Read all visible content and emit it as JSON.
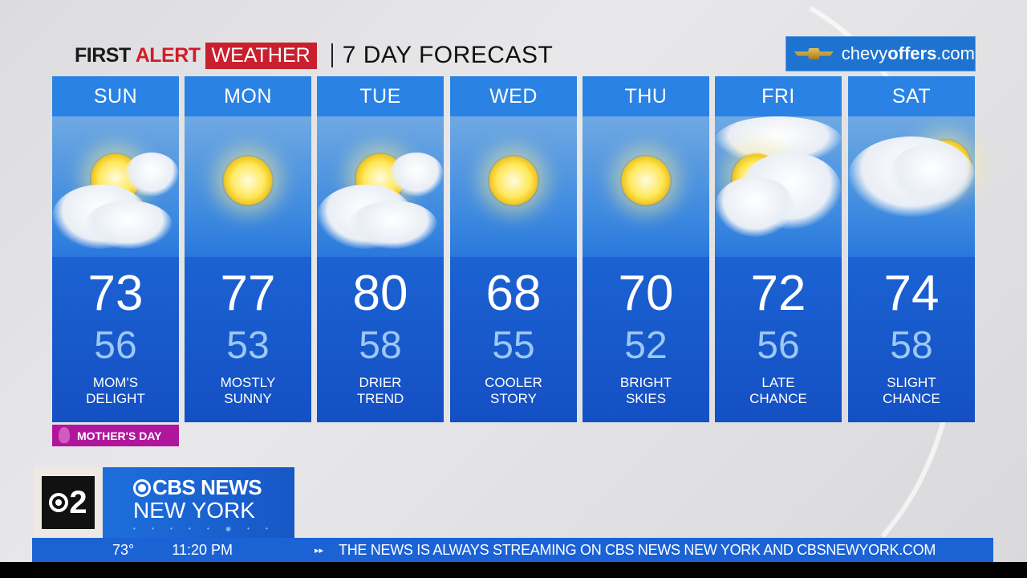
{
  "header": {
    "brand_first": "FIRST",
    "brand_alert": "ALERT",
    "brand_weather": "WEATHER",
    "title": "7 DAY FORECAST"
  },
  "sponsor": {
    "logo_icon": "chevrolet-bowtie-icon",
    "text_light": "chevy",
    "text_bold": "offers",
    "text_tail": ".com"
  },
  "days": [
    {
      "day": "SUN",
      "high": "73",
      "low": "56",
      "desc1": "MOM'S",
      "desc2": "DELIGHT",
      "icon": "partly-sunny"
    },
    {
      "day": "MON",
      "high": "77",
      "low": "53",
      "desc1": "MOSTLY",
      "desc2": "SUNNY",
      "icon": "sunny"
    },
    {
      "day": "TUE",
      "high": "80",
      "low": "58",
      "desc1": "DRIER",
      "desc2": "TREND",
      "icon": "partly-sunny"
    },
    {
      "day": "WED",
      "high": "68",
      "low": "55",
      "desc1": "COOLER",
      "desc2": "STORY",
      "icon": "sunny"
    },
    {
      "day": "THU",
      "high": "70",
      "low": "52",
      "desc1": "BRIGHT",
      "desc2": "SKIES",
      "icon": "sunny"
    },
    {
      "day": "FRI",
      "high": "72",
      "low": "56",
      "desc1": "LATE",
      "desc2": "CHANCE",
      "icon": "mostly-cloudy"
    },
    {
      "day": "SAT",
      "high": "74",
      "low": "58",
      "desc1": "SLIGHT",
      "desc2": "CHANCE",
      "icon": "cloudy-showers"
    }
  ],
  "badge": {
    "text": "MOTHER'S DAY",
    "color": "#b0169c"
  },
  "station": {
    "channel": "2",
    "line1": "CBS NEWS",
    "line2": "NEW YORK"
  },
  "ticker": {
    "temp": "73°",
    "time": "11:20 PM",
    "message": "THE NEWS IS ALWAYS STREAMING ON CBS NEWS NEW YORK AND CBSNEWYORK.COM"
  },
  "colors": {
    "accent_red": "#c8202e",
    "panel_blue": "#1a5fd0",
    "low_temp": "#9cc8f5"
  }
}
